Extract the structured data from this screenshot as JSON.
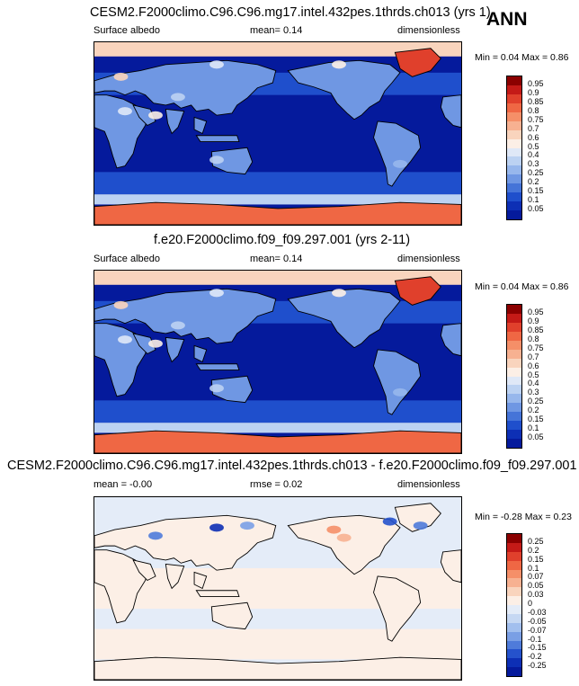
{
  "season": "ANN",
  "panels": [
    {
      "title": "CESM2.F2000climo.C96.C96.mg17.intel.432pes.1thrds.ch013 (yrs 1)",
      "left": "Surface albedo",
      "center": "mean=   0.14",
      "right": "dimensionless",
      "minmax": "Min =   0.04  Max =    0.86",
      "kind": "abs",
      "levels": [
        "0.95",
        "0.9",
        "0.85",
        "0.8",
        "0.75",
        "0.7",
        "0.6",
        "0.5",
        "0.4",
        "0.3",
        "0.25",
        "0.2",
        "0.15",
        "0.1",
        "0.05"
      ],
      "colors": [
        "#8b0000",
        "#c41a17",
        "#e0402c",
        "#ef6744",
        "#f58f68",
        "#f7b191",
        "#f9d4bd",
        "#fcefe6",
        "#dfe8f7",
        "#bcd2f2",
        "#97b7ec",
        "#6f97e3",
        "#4574d8",
        "#1f4fcc",
        "#0d2fb5",
        "#051a9c"
      ]
    },
    {
      "title": "f.e20.F2000climo.f09_f09.297.001 (yrs 2-11)",
      "left": "Surface albedo",
      "center": "mean=   0.14",
      "right": "dimensionless",
      "minmax": "Min =   0.04  Max =    0.86",
      "kind": "abs",
      "levels": [
        "0.95",
        "0.9",
        "0.85",
        "0.8",
        "0.75",
        "0.7",
        "0.6",
        "0.5",
        "0.4",
        "0.3",
        "0.25",
        "0.2",
        "0.15",
        "0.1",
        "0.05"
      ],
      "colors": [
        "#8b0000",
        "#c41a17",
        "#e0402c",
        "#ef6744",
        "#f58f68",
        "#f7b191",
        "#f9d4bd",
        "#fcefe6",
        "#dfe8f7",
        "#bcd2f2",
        "#97b7ec",
        "#6f97e3",
        "#4574d8",
        "#1f4fcc",
        "#0d2fb5",
        "#051a9c"
      ]
    },
    {
      "title": "CESM2.F2000climo.C96.C96.mg17.intel.432pes.1thrds.ch013 - f.e20.F2000climo.f09_f09.297.001",
      "left": "mean =  -0.00",
      "center": "rmse =   0.02",
      "right": "dimensionless",
      "minmax": "Min =  -0.28  Max =    0.23",
      "kind": "diff",
      "levels": [
        "0.25",
        "0.2",
        "0.15",
        "0.1",
        "0.07",
        "0.05",
        "0.03",
        "0",
        "-0.03",
        "-0.05",
        "-0.07",
        "-0.1",
        "-0.15",
        "-0.2",
        "-0.25"
      ],
      "colors": [
        "#8b0000",
        "#c41a17",
        "#e0402c",
        "#ef6744",
        "#f58f68",
        "#f7b191",
        "#f9d4bd",
        "#fcefe6",
        "#e4ecf8",
        "#c6d8f3",
        "#a2bfee",
        "#7a9fe5",
        "#4f7bda",
        "#2552cc",
        "#0d2fb5",
        "#051a9c"
      ]
    }
  ]
}
